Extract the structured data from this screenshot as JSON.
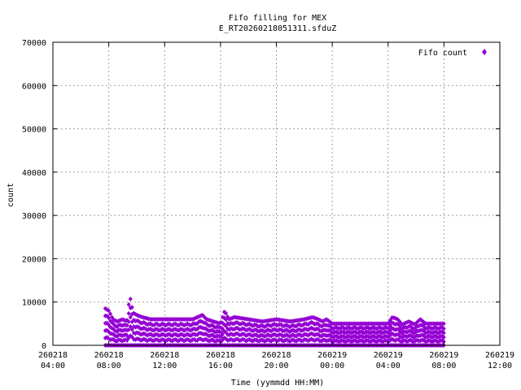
{
  "chart_data": {
    "type": "scatter",
    "title": "Fifo filling for MEX",
    "subtitle": "E_RT20260218051311.sfduZ",
    "xlabel": "Time (yymmdd HH:MM)",
    "ylabel": "count",
    "ylim": [
      0,
      70000
    ],
    "y_ticks": [
      "0",
      "10000",
      "20000",
      "30000",
      "40000",
      "50000",
      "60000",
      "70000"
    ],
    "x_range_hours": [
      0,
      32
    ],
    "x_ticks": [
      {
        "date": "260218",
        "time": "04:00",
        "hour": 0
      },
      {
        "date": "260218",
        "time": "08:00",
        "hour": 4
      },
      {
        "date": "260218",
        "time": "12:00",
        "hour": 8
      },
      {
        "date": "260218",
        "time": "16:00",
        "hour": 12
      },
      {
        "date": "260218",
        "time": "20:00",
        "hour": 16
      },
      {
        "date": "260219",
        "time": "00:00",
        "hour": 20
      },
      {
        "date": "260219",
        "time": "04:00",
        "hour": 24
      },
      {
        "date": "260219",
        "time": "08:00",
        "hour": 28
      },
      {
        "date": "260219",
        "time": "12:00",
        "hour": 32
      }
    ],
    "grid": true,
    "legend": {
      "position": "top-right",
      "entries": [
        "Fifo count"
      ]
    },
    "series": [
      {
        "name": "Fifo count",
        "color": "#9400d3",
        "marker": "diamond",
        "envelope_x": [
          3.75,
          4.0,
          4.3,
          4.6,
          5.0,
          5.3,
          5.5,
          5.75,
          6.0,
          6.4,
          7.0,
          8.0,
          9.0,
          10.0,
          10.7,
          11.0,
          11.5,
          12.0,
          12.3,
          12.6,
          13.0,
          14.0,
          15.0,
          16.0,
          17.0,
          18.0,
          18.6,
          19.0,
          19.3,
          19.6,
          20.0,
          21.0,
          22.0,
          23.0,
          24.0,
          24.3,
          24.7,
          25.0,
          25.5,
          25.9,
          26.3,
          26.7,
          27.0,
          27.5,
          28.0,
          28.1
        ],
        "envelope_y": [
          8500,
          8000,
          6000,
          5500,
          6000,
          5500,
          11500,
          7500,
          7000,
          6500,
          6000,
          6000,
          6000,
          6000,
          7000,
          6000,
          5500,
          5000,
          8000,
          6000,
          6500,
          6000,
          5500,
          6000,
          5500,
          6000,
          6500,
          6000,
          5500,
          6000,
          5000,
          5000,
          5000,
          5000,
          5000,
          6500,
          6000,
          4800,
          5500,
          4800,
          6000,
          5000,
          5000,
          5000,
          5000,
          4800
        ]
      }
    ]
  }
}
